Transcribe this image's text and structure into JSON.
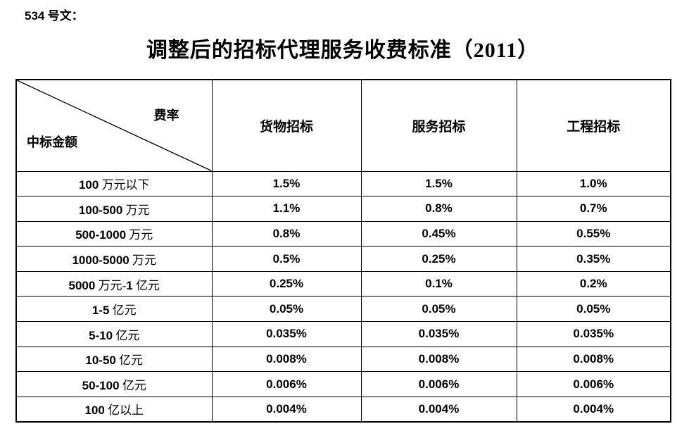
{
  "doc": {
    "ref_label": "534 号文：",
    "title": "调整后的招标代理服务收费标准（2011）"
  },
  "table": {
    "corner": {
      "fee_rate_label": "费率",
      "amount_label": "中标金额"
    },
    "columns": [
      "货物招标",
      "服务招标",
      "工程招标"
    ],
    "rows": [
      {
        "label": "100 万元以下",
        "values": [
          "1.5%",
          "1.5%",
          "1.0%"
        ]
      },
      {
        "label": "100-500 万元",
        "values": [
          "1.1%",
          "0.8%",
          "0.7%"
        ]
      },
      {
        "label": "500-1000 万元",
        "values": [
          "0.8%",
          "0.45%",
          "0.55%"
        ]
      },
      {
        "label": "1000-5000 万元",
        "values": [
          "0.5%",
          "0.25%",
          "0.35%"
        ]
      },
      {
        "label": "5000 万元-1 亿元",
        "values": [
          "0.25%",
          "0.1%",
          "0.2%"
        ]
      },
      {
        "label": "1-5 亿元",
        "values": [
          "0.05%",
          "0.05%",
          "0.05%"
        ]
      },
      {
        "label": "5-10 亿元",
        "values": [
          "0.035%",
          "0.035%",
          "0.035%"
        ]
      },
      {
        "label": "10-50 亿元",
        "values": [
          "0.008%",
          "0.008%",
          "0.008%"
        ]
      },
      {
        "label": "50-100 亿元",
        "values": [
          "0.006%",
          "0.006%",
          "0.006%"
        ]
      },
      {
        "label": "100 亿以上",
        "values": [
          "0.004%",
          "0.004%",
          "0.004%"
        ]
      }
    ]
  }
}
